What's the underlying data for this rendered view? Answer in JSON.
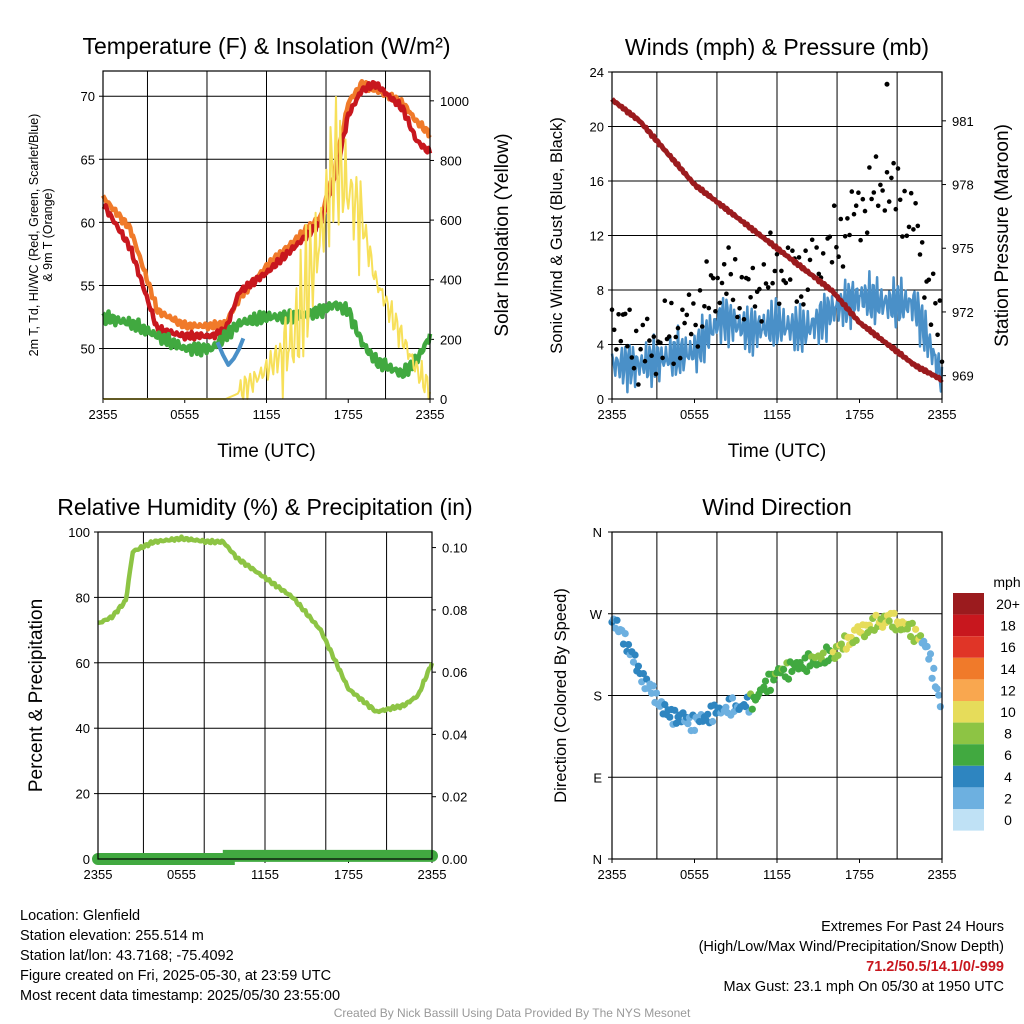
{
  "chart_data": [
    {
      "id": "temperature",
      "type": "line",
      "title": "Temperature (F) & Insolation (W/m²)",
      "xlabel": "Time (UTC)",
      "ylabel": "2m T, Td, HI/WC (Red, Green, Scarlet/Blue) & 9m T (Orange)",
      "ylabel_lines": [
        "2m T, Td, HI/WC (Red, Green, Scarlet/Blue)",
        "& 9m T (Orange)"
      ],
      "y2label": "Solar Insolation (Yellow)",
      "ylim": [
        46,
        72
      ],
      "y2lim": [
        0,
        1100
      ],
      "yticks": [
        50,
        55,
        60,
        65,
        70
      ],
      "y2ticks": [
        0,
        200,
        400,
        600,
        800,
        1000
      ],
      "xticks": [
        "2355",
        "0555",
        "1155",
        "1755",
        "2355"
      ],
      "x_hours": [
        0,
        2,
        4,
        6,
        8,
        9,
        10,
        12,
        14,
        16,
        17,
        18,
        19,
        20,
        22,
        23,
        24
      ],
      "series": [
        {
          "key": "temp_9m",
          "color": "#f07a2a",
          "axis": "left",
          "values": [
            62,
            59.5,
            53,
            51.8,
            51.8,
            52,
            54,
            56.5,
            58.5,
            60.5,
            64,
            69.5,
            71,
            70.5,
            69.5,
            68,
            67
          ]
        },
        {
          "key": "temp_2m",
          "color": "#c8171e",
          "axis": "left",
          "values": [
            61.5,
            58,
            51.5,
            51,
            51,
            51.5,
            54.5,
            56,
            58,
            60,
            63.5,
            68.5,
            70.5,
            71,
            69,
            66.5,
            65.5
          ]
        },
        {
          "key": "dewpoint",
          "color": "#41a940",
          "axis": "left",
          "values": [
            52.5,
            52,
            51,
            50,
            50,
            51,
            52,
            52.5,
            52.5,
            53,
            53.5,
            53,
            50.5,
            49,
            48,
            49,
            51
          ]
        },
        {
          "key": "windchill",
          "color": "#4a90c8",
          "axis": "left",
          "values": [
            null,
            null,
            null,
            null,
            null,
            49.5,
            null,
            null,
            null,
            null,
            null,
            null,
            null,
            null,
            null,
            null,
            null
          ]
        },
        {
          "key": "solar",
          "color": "#f7e05a",
          "axis": "right",
          "values": [
            0,
            0,
            0,
            0,
            0,
            0,
            20,
            100,
            200,
            550,
            800,
            700,
            600,
            400,
            200,
            100,
            30
          ]
        }
      ]
    },
    {
      "id": "winds",
      "type": "line",
      "title": "Winds (mph) & Pressure (mb)",
      "xlabel": "Time (UTC)",
      "ylabel": "Sonic Wind & Gust (Blue, Black)",
      "y2label": "Station Pressure (Maroon)",
      "ylim": [
        0,
        24
      ],
      "y2lim": [
        967.9,
        983.3
      ],
      "yticks": [
        0,
        4,
        8,
        12,
        16,
        20,
        24
      ],
      "y2ticks": [
        969,
        972,
        975,
        978,
        981
      ],
      "xticks": [
        "2355",
        "0555",
        "1155",
        "1755",
        "2355"
      ],
      "x_hours": [
        0,
        2,
        4,
        6,
        8,
        10,
        12,
        14,
        16,
        18,
        20,
        22,
        24
      ],
      "series": [
        {
          "key": "wind",
          "color": "#4a90c8",
          "values": [
            2.5,
            2.5,
            3,
            3.5,
            6,
            5,
            5.5,
            5,
            6.5,
            7.5,
            7,
            7,
            1.5
          ]
        },
        {
          "key": "gust",
          "color": "#000000",
          "values": [
            6,
            3.5,
            4.5,
            6,
            9,
            7.5,
            9.5,
            9,
            11,
            14,
            16,
            13,
            4
          ]
        },
        {
          "key": "pressure",
          "color": "#9b1b1e",
          "values": [
            982,
            981,
            979.5,
            978,
            977,
            976,
            975,
            974,
            973,
            971.5,
            970.5,
            969.5,
            968.8
          ]
        }
      ],
      "max_gust_point": {
        "hour": 20,
        "value": 23.1
      }
    },
    {
      "id": "humidity",
      "type": "line",
      "title": "Relative Humidity (%) & Precipitation (in)",
      "ylabel": "Percent & Precipitation",
      "ylim": [
        0,
        100
      ],
      "y2lim": [
        0,
        0.105
      ],
      "yticks": [
        0,
        20,
        40,
        60,
        80,
        100
      ],
      "y2ticks": [
        "0.00",
        "0.02",
        "0.04",
        "0.06",
        "0.08",
        "0.10"
      ],
      "xticks": [
        "2355",
        "0555",
        "1155",
        "1755",
        "2355"
      ],
      "x_hours": [
        0,
        1,
        2,
        2.5,
        4,
        6,
        8,
        9,
        10,
        12,
        14,
        16,
        18,
        20,
        22,
        23,
        24
      ],
      "series": [
        {
          "key": "rh",
          "color": "#8dc444",
          "values": [
            72,
            74,
            79,
            94,
            97,
            98,
            97,
            97,
            92,
            86,
            80,
            70,
            52,
            45,
            47,
            50,
            60
          ]
        },
        {
          "key": "precip",
          "color": "#41a940",
          "hours": [
            0,
            9.4,
            9.4,
            24
          ],
          "values": [
            0,
            0,
            0.001,
            0.001
          ]
        }
      ]
    },
    {
      "id": "direction",
      "type": "scatter",
      "title": "Wind Direction",
      "ylabel": "Direction (Colored By Speed)",
      "yticks": [
        "N",
        "E",
        "S",
        "W",
        "N"
      ],
      "xticks": [
        "2355",
        "0555",
        "1155",
        "1755",
        "2355"
      ],
      "x_hours": [
        0,
        1,
        2,
        4,
        6,
        8,
        10,
        12,
        14,
        16,
        18,
        20,
        22,
        23,
        24
      ],
      "direction_deg": [
        265,
        240,
        205,
        160,
        150,
        165,
        170,
        205,
        215,
        225,
        250,
        265,
        250,
        230,
        160
      ],
      "legend": {
        "title": "mph",
        "labels": [
          "20+",
          "18",
          "16",
          "14",
          "12",
          "10",
          "8",
          "6",
          "4",
          "2",
          "0"
        ],
        "colors": [
          "#9b1b1e",
          "#c8171e",
          "#e03527",
          "#f07a2a",
          "#f9a74f",
          "#e6dc5a",
          "#8dc444",
          "#41a940",
          "#2e85c0",
          "#6db0e0",
          "#bfe1f5"
        ]
      }
    }
  ],
  "info": {
    "location": "Location: Glenfield",
    "elevation": "Station elevation: 255.514 m",
    "latlon": "Station lat/lon: 43.7168; -75.4092",
    "created": "Figure created on Fri, 2025-05-30, at 23:59 UTC",
    "recent": "Most recent data timestamp: 2025/05/30 23:55:00"
  },
  "extremes": {
    "title": "Extremes For Past 24 Hours",
    "subtitle": "(High/Low/Max Wind/Precipitation/Snow Depth)",
    "values": "71.2/50.5/14.1/0/-999",
    "max_gust": "Max Gust: 23.1 mph On 05/30 at 1950 UTC"
  },
  "credit": "Created By Nick Bassill Using Data Provided By The NYS Mesonet"
}
